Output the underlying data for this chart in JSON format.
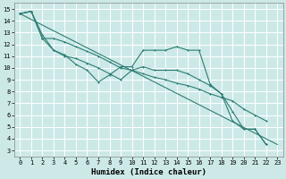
{
  "xlabel": "Humidex (Indice chaleur)",
  "xlim": [
    -0.5,
    23.5
  ],
  "ylim": [
    2.5,
    15.5
  ],
  "yticks": [
    3,
    4,
    5,
    6,
    7,
    8,
    9,
    10,
    11,
    12,
    13,
    14,
    15
  ],
  "xticks": [
    0,
    1,
    2,
    3,
    4,
    5,
    6,
    7,
    8,
    9,
    10,
    11,
    12,
    13,
    14,
    15,
    16,
    17,
    18,
    19,
    20,
    21,
    22,
    23
  ],
  "bg_color": "#cce9e8",
  "grid_color": "#ffffff",
  "line_color": "#2d7d74",
  "line1_x": [
    0,
    1,
    2,
    3,
    4,
    5,
    6,
    7,
    8,
    9,
    10,
    11,
    12,
    13,
    14,
    15,
    16,
    17,
    18,
    19,
    20,
    21,
    22
  ],
  "line1_y": [
    14.6,
    14.8,
    12.8,
    11.5,
    11.1,
    10.3,
    9.8,
    8.8,
    9.4,
    10.1,
    10.1,
    11.5,
    11.5,
    11.5,
    11.8,
    11.5,
    11.5,
    8.6,
    7.8,
    6.3,
    4.8,
    4.8,
    3.5
  ],
  "line2_x": [
    0,
    1,
    2,
    3,
    4,
    5,
    6,
    7,
    8,
    9,
    10,
    11,
    12,
    13,
    14,
    15,
    16,
    17,
    18,
    19,
    20,
    21,
    22
  ],
  "line2_y": [
    14.6,
    14.8,
    12.5,
    11.5,
    11.0,
    10.8,
    10.4,
    10.0,
    9.5,
    9.0,
    9.8,
    10.1,
    9.8,
    9.8,
    9.8,
    9.5,
    9.0,
    8.5,
    7.8,
    5.5,
    4.8,
    4.8,
    3.5
  ],
  "line3_x": [
    0,
    23
  ],
  "line3_y": [
    14.6,
    3.5
  ],
  "line4_x": [
    0,
    1,
    2,
    3,
    4,
    5,
    6,
    7,
    8,
    9,
    10,
    11,
    12,
    13,
    14,
    15,
    16,
    17,
    18,
    19,
    20,
    21,
    22
  ],
  "line4_y": [
    14.6,
    14.8,
    12.5,
    12.5,
    12.2,
    11.8,
    11.4,
    11.0,
    10.5,
    10.0,
    9.8,
    9.5,
    9.2,
    9.0,
    8.7,
    8.5,
    8.2,
    7.8,
    7.5,
    7.2,
    6.5,
    6.0,
    5.5
  ]
}
